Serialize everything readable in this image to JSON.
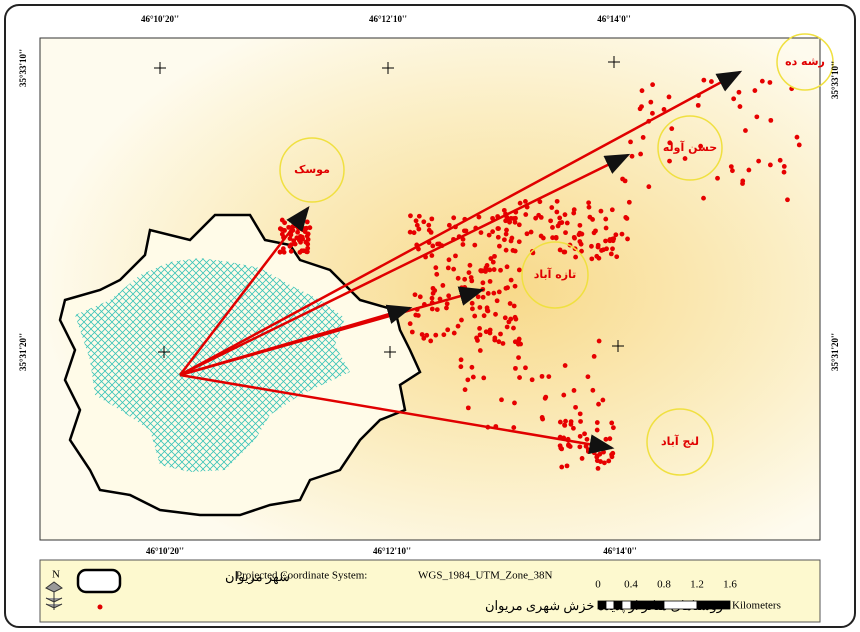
{
  "map": {
    "grid_labels": {
      "top": [
        "46°10'20''",
        "46°12'10''",
        "46°14'0''"
      ],
      "bottom": [
        "46°10'20''",
        "46°12'10''",
        "46°14'0''"
      ],
      "left": [
        "35°33'10''",
        "35°31'20''"
      ],
      "right": [
        "35°33'10''",
        "35°31'20''"
      ]
    },
    "places": [
      "موسک",
      "حسن آوله",
      "رشه ده",
      "تازه آباد",
      "لنج آباد"
    ],
    "legend": {
      "north": "N",
      "city": "شهر مریوان",
      "villages": "روستاهای متاثر از پدیده خزش شهری مریوان",
      "projection_label": "Projected Coordinate System:",
      "projection": "WGS_1984_UTM_Zone_38N",
      "scale_ticks": [
        "0",
        "0.4",
        "0.8",
        "1.2",
        "1.6"
      ],
      "scale_unit": "Kilometers"
    }
  }
}
